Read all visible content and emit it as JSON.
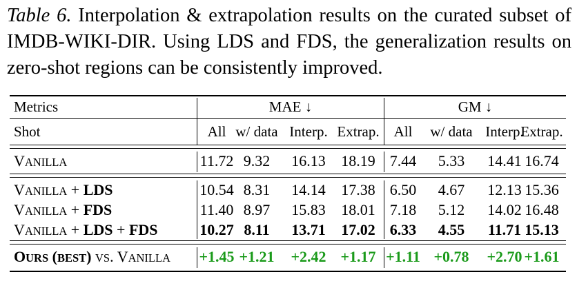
{
  "caption": {
    "label": "Table 6.",
    "text": " Interpolation & extrapolation results on the curated subset of IMDB-WIKI-DIR. Using LDS and FDS, the generalization results on zero-shot regions can be consistently improved."
  },
  "table": {
    "header1": {
      "metrics_label": "Metrics",
      "group1": "MAE ↓",
      "group2": "GM ↓"
    },
    "header2": {
      "shot_label": "Shot",
      "columns": [
        "All",
        "w/ data",
        "Interp.",
        "Extrap.",
        "All",
        "w/ data",
        "Interp.",
        "Extrap."
      ]
    },
    "rows": [
      {
        "label_parts": [
          {
            "t": "V",
            "k": "big"
          },
          {
            "t": "ANILLA",
            "k": "small"
          }
        ],
        "values": [
          "11.72",
          "9.32",
          "16.13",
          "18.19",
          "7.44",
          "5.33",
          "14.41",
          "16.74"
        ],
        "style": "normal"
      },
      {
        "label_parts": [
          {
            "t": "V",
            "k": "big"
          },
          {
            "t": "ANILLA",
            "k": "small"
          },
          {
            "t": " + ",
            "k": "big"
          },
          {
            "t": "LDS",
            "k": "boldbig"
          }
        ],
        "values": [
          "10.54",
          "8.31",
          "14.14",
          "17.38",
          "6.50",
          "4.67",
          "12.13",
          "15.36"
        ],
        "style": "normal"
      },
      {
        "label_parts": [
          {
            "t": "V",
            "k": "big"
          },
          {
            "t": "ANILLA",
            "k": "small"
          },
          {
            "t": " + ",
            "k": "big"
          },
          {
            "t": "FDS",
            "k": "boldbig"
          }
        ],
        "values": [
          "11.40",
          "8.97",
          "15.83",
          "18.01",
          "7.18",
          "5.12",
          "14.02",
          "16.48"
        ],
        "style": "normal"
      },
      {
        "label_parts": [
          {
            "t": "V",
            "k": "big"
          },
          {
            "t": "ANILLA",
            "k": "small"
          },
          {
            "t": " + ",
            "k": "big"
          },
          {
            "t": "LDS",
            "k": "boldbig"
          },
          {
            "t": " + ",
            "k": "big"
          },
          {
            "t": "FDS",
            "k": "boldbig"
          }
        ],
        "values": [
          "10.27",
          "8.11",
          "13.71",
          "17.02",
          "6.33",
          "4.55",
          "11.71",
          "15.13"
        ],
        "style": "bold"
      },
      {
        "label_parts": [
          {
            "t": "O",
            "k": "boldbig"
          },
          {
            "t": "URS",
            "k": "boldsmall"
          },
          {
            "t": " (",
            "k": "boldbig"
          },
          {
            "t": "BEST",
            "k": "boldsmall"
          },
          {
            "t": ") ",
            "k": "boldbig"
          },
          {
            "t": "VS",
            "k": "small"
          },
          {
            "t": ". V",
            "k": "big"
          },
          {
            "t": "ANILLA",
            "k": "small"
          }
        ],
        "values": [
          "+1.45",
          "+1.21",
          "+2.42",
          "+1.17",
          "+1.11",
          "+0.78",
          "+2.70",
          "+1.61"
        ],
        "style": "green"
      }
    ]
  }
}
